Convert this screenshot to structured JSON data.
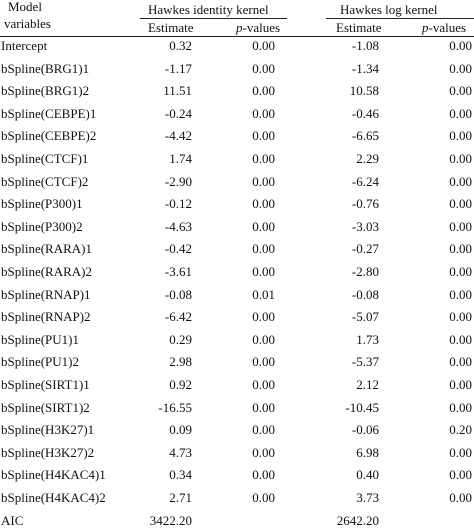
{
  "header": {
    "model_line1": "Model",
    "model_line2": "variables",
    "group1": "Hawkes identity kernel",
    "group2": "Hawkes log kernel",
    "estimate": "Estimate",
    "pvalues_italic": "p",
    "pvalues_rest": "-values"
  },
  "rows": [
    {
      "var": "Intercept",
      "e1": "0.32",
      "p1": "0.00",
      "e2": "-1.08",
      "p2": "0.00"
    },
    {
      "var": "bSpline(BRG1)1",
      "e1": "-1.17",
      "p1": "0.00",
      "e2": "-1.34",
      "p2": "0.00"
    },
    {
      "var": "bSpline(BRG1)2",
      "e1": "11.51",
      "p1": "0.00",
      "e2": "10.58",
      "p2": "0.00"
    },
    {
      "var": "bSpline(CEBPE)1",
      "e1": "-0.24",
      "p1": "0.00",
      "e2": "-0.46",
      "p2": "0.00"
    },
    {
      "var": "bSpline(CEBPE)2",
      "e1": "-4.42",
      "p1": "0.00",
      "e2": "-6.65",
      "p2": "0.00"
    },
    {
      "var": "bSpline(CTCF)1",
      "e1": "1.74",
      "p1": "0.00",
      "e2": "2.29",
      "p2": "0.00"
    },
    {
      "var": "bSpline(CTCF)2",
      "e1": "-2.90",
      "p1": "0.00",
      "e2": "-6.24",
      "p2": "0.00"
    },
    {
      "var": "bSpline(P300)1",
      "e1": "-0.12",
      "p1": "0.00",
      "e2": "-0.76",
      "p2": "0.00"
    },
    {
      "var": "bSpline(P300)2",
      "e1": "-4.63",
      "p1": "0.00",
      "e2": "-3.03",
      "p2": "0.00"
    },
    {
      "var": "bSpline(RARA)1",
      "e1": "-0.42",
      "p1": "0.00",
      "e2": "-0.27",
      "p2": "0.00"
    },
    {
      "var": "bSpline(RARA)2",
      "e1": "-3.61",
      "p1": "0.00",
      "e2": "-2.80",
      "p2": "0.00"
    },
    {
      "var": "bSpline(RNAP)1",
      "e1": "-0.08",
      "p1": "0.01",
      "e2": "-0.08",
      "p2": "0.00"
    },
    {
      "var": "bSpline(RNAP)2",
      "e1": "-6.42",
      "p1": "0.00",
      "e2": "-5.07",
      "p2": "0.00"
    },
    {
      "var": "bSpline(PU1)1",
      "e1": "0.29",
      "p1": "0.00",
      "e2": "1.73",
      "p2": "0.00"
    },
    {
      "var": "bSpline(PU1)2",
      "e1": "2.98",
      "p1": "0.00",
      "e2": "-5.37",
      "p2": "0.00"
    },
    {
      "var": "bSpline(SIRT1)1",
      "e1": "0.92",
      "p1": "0.00",
      "e2": "2.12",
      "p2": "0.00"
    },
    {
      "var": "bSpline(SIRT1)2",
      "e1": "-16.55",
      "p1": "0.00",
      "e2": "-10.45",
      "p2": "0.00"
    },
    {
      "var": "bSpline(H3K27)1",
      "e1": "0.09",
      "p1": "0.00",
      "e2": "-0.06",
      "p2": "0.20"
    },
    {
      "var": "bSpline(H3K27)2",
      "e1": "4.73",
      "p1": "0.00",
      "e2": "6.98",
      "p2": "0.00"
    },
    {
      "var": "bSpline(H4KAC4)1",
      "e1": "0.34",
      "p1": "0.00",
      "e2": "0.40",
      "p2": "0.00"
    },
    {
      "var": "bSpline(H4KAC4)2",
      "e1": "2.71",
      "p1": "0.00",
      "e2": "3.73",
      "p2": "0.00"
    },
    {
      "var": "AIC",
      "e1": "3422.20",
      "p1": "",
      "e2": "2642.20",
      "p2": ""
    }
  ]
}
